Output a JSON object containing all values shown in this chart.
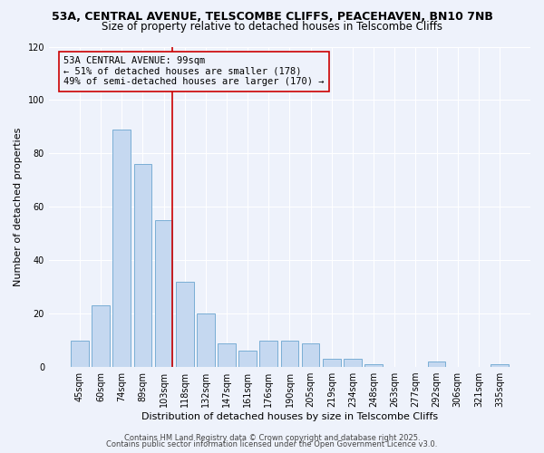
{
  "title_line1": "53A, CENTRAL AVENUE, TELSCOMBE CLIFFS, PEACEHAVEN, BN10 7NB",
  "title_line2": "Size of property relative to detached houses in Telscombe Cliffs",
  "bar_labels": [
    "45sqm",
    "60sqm",
    "74sqm",
    "89sqm",
    "103sqm",
    "118sqm",
    "132sqm",
    "147sqm",
    "161sqm",
    "176sqm",
    "190sqm",
    "205sqm",
    "219sqm",
    "234sqm",
    "248sqm",
    "263sqm",
    "277sqm",
    "292sqm",
    "306sqm",
    "321sqm",
    "335sqm"
  ],
  "bar_values": [
    10,
    23,
    89,
    76,
    55,
    32,
    20,
    9,
    6,
    10,
    10,
    9,
    3,
    3,
    1,
    0,
    0,
    2,
    0,
    0,
    1
  ],
  "bar_color": "#c5d8f0",
  "bar_edgecolor": "#7aaed4",
  "xlabel": "Distribution of detached houses by size in Telscombe Cliffs",
  "ylabel": "Number of detached properties",
  "ylim": [
    0,
    120
  ],
  "yticks": [
    0,
    20,
    40,
    60,
    80,
    100,
    120
  ],
  "vline_index": 4,
  "vline_color": "#cc0000",
  "annotation_title": "53A CENTRAL AVENUE: 99sqm",
  "annotation_line1": "← 51% of detached houses are smaller (178)",
  "annotation_line2": "49% of semi-detached houses are larger (170) →",
  "annotation_box_color": "#cc0000",
  "footnote1": "Contains HM Land Registry data © Crown copyright and database right 2025.",
  "footnote2": "Contains public sector information licensed under the Open Government Licence v3.0.",
  "background_color": "#eef2fb",
  "grid_color": "#ffffff",
  "title_fontsize": 9,
  "subtitle_fontsize": 8.5,
  "axis_label_fontsize": 8,
  "tick_fontsize": 7,
  "annotation_fontsize": 7.5,
  "footnote_fontsize": 6
}
